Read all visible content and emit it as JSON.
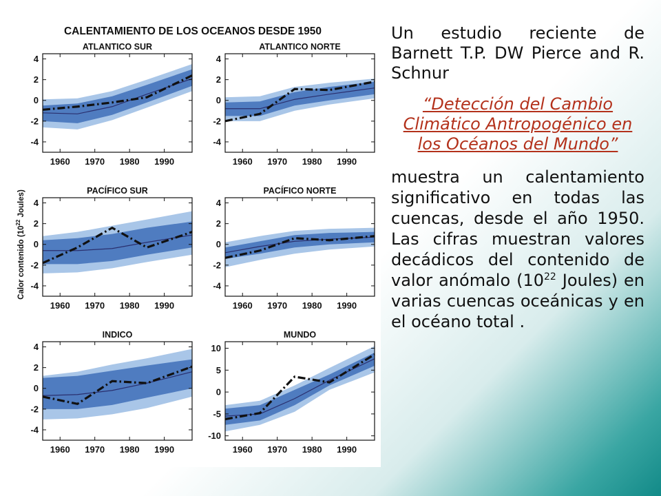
{
  "slide": {
    "intro": "Un estudio reciente de Barnett T.P. DW Pierce and R. Schnur",
    "study_title": "“Detección del Cambio Climático Antropogénico en los Océanos del Mundo”",
    "desc_before": "muestra un calentamiento significativo en todas las cuencas, desde el año 1950. Las cifras muestran valores decádicos del contenido de valor anómalo (10",
    "desc_sup": "22",
    "desc_after": " Joules) en varias cuencas oceánicas y en el océano total ."
  },
  "colors": {
    "outer_band": "#a9c6e8",
    "inner_band": "#4f7cc0",
    "model_line": "#2a2f6e",
    "observed_line": "#111111",
    "axis": "#111111"
  },
  "figure": {
    "title": "CALENTAMIENTO DE LOS OCEANOS DESDE 1950",
    "ylabel_prefix": "Calor contenido (10",
    "ylabel_sup": "22",
    "ylabel_suffix": " Joules)"
  },
  "chart_data": [
    {
      "type": "area",
      "title": "ATLANTICO SUR",
      "xlabel": "",
      "ylabel": "Calor contenido (10^22 Joules)",
      "xlim": [
        1955,
        1998
      ],
      "ylim": [
        -5,
        4.5
      ],
      "xticks": [
        1960,
        1970,
        1980,
        1990
      ],
      "yticks": [
        4,
        2,
        0,
        -2,
        -4
      ],
      "x": [
        1955,
        1965,
        1975,
        1985,
        1998
      ],
      "outer_upper": [
        0.1,
        0.2,
        0.9,
        2.0,
        3.5
      ],
      "outer_lower": [
        -2.6,
        -2.8,
        -1.9,
        -0.7,
        0.9
      ],
      "inner_upper": [
        -0.5,
        -0.3,
        0.4,
        1.5,
        3.0
      ],
      "inner_lower": [
        -2.0,
        -2.2,
        -1.4,
        -0.2,
        1.4
      ],
      "model": [
        -1.2,
        -1.3,
        -0.6,
        0.6,
        2.1
      ],
      "observed": [
        -0.9,
        -0.6,
        -0.2,
        0.3,
        2.4
      ]
    },
    {
      "type": "area",
      "title": "ATLANTICO NORTE",
      "xlabel": "",
      "ylabel": "",
      "xlim": [
        1955,
        1998
      ],
      "ylim": [
        -5,
        4.5
      ],
      "xticks": [
        1960,
        1970,
        1980,
        1990
      ],
      "yticks": [
        4,
        2,
        0,
        -2,
        -4
      ],
      "x": [
        1955,
        1965,
        1975,
        1985,
        1998
      ],
      "outer_upper": [
        0.3,
        0.4,
        1.3,
        1.7,
        2.1
      ],
      "outer_lower": [
        -2.0,
        -2.0,
        -1.0,
        -0.4,
        0.2
      ],
      "inner_upper": [
        -0.2,
        -0.1,
        0.8,
        1.3,
        1.8
      ],
      "inner_lower": [
        -1.5,
        -1.5,
        -0.5,
        0.0,
        0.6
      ],
      "model": [
        -0.8,
        -0.8,
        0.1,
        0.6,
        1.2
      ],
      "observed": [
        -2.0,
        -1.3,
        1.1,
        1.0,
        1.8
      ]
    },
    {
      "type": "area",
      "title": "PACÍFICO SUR",
      "xlabel": "",
      "ylabel": "",
      "xlim": [
        1955,
        1998
      ],
      "ylim": [
        -5,
        4.5
      ],
      "xticks": [
        1960,
        1970,
        1980,
        1990
      ],
      "yticks": [
        4,
        2,
        0,
        -2,
        -4
      ],
      "x": [
        1955,
        1965,
        1975,
        1985,
        1998
      ],
      "outer_upper": [
        0.8,
        1.2,
        1.8,
        2.4,
        3.2
      ],
      "outer_lower": [
        -2.8,
        -2.7,
        -2.3,
        -1.7,
        -1.0
      ],
      "inner_upper": [
        0.4,
        0.6,
        1.0,
        1.6,
        2.2
      ],
      "inner_lower": [
        -1.9,
        -1.9,
        -1.6,
        -1.0,
        -0.3
      ],
      "model": [
        -0.6,
        -0.6,
        -0.4,
        0.2,
        0.9
      ],
      "observed": [
        -1.8,
        -0.3,
        1.6,
        -0.3,
        1.2
      ]
    },
    {
      "type": "area",
      "title": "PACÍFICO NORTE",
      "xlabel": "",
      "ylabel": "",
      "xlim": [
        1955,
        1998
      ],
      "ylim": [
        -5,
        4.5
      ],
      "xticks": [
        1960,
        1970,
        1980,
        1990
      ],
      "yticks": [
        4,
        2,
        0,
        -2,
        -4
      ],
      "x": [
        1955,
        1965,
        1975,
        1985,
        1998
      ],
      "outer_upper": [
        0.2,
        0.8,
        1.3,
        1.5,
        1.6
      ],
      "outer_lower": [
        -2.2,
        -1.5,
        -0.9,
        -0.5,
        -0.2
      ],
      "inner_upper": [
        -0.3,
        0.3,
        0.9,
        1.1,
        1.2
      ],
      "inner_lower": [
        -1.4,
        -0.9,
        -0.3,
        0.0,
        0.2
      ],
      "model": [
        -0.8,
        -0.2,
        0.3,
        0.5,
        0.7
      ],
      "observed": [
        -1.3,
        -0.6,
        0.6,
        0.4,
        0.8
      ]
    },
    {
      "type": "area",
      "title": "INDICO",
      "xlabel": "",
      "ylabel": "",
      "xlim": [
        1955,
        1998
      ],
      "ylim": [
        -5,
        4.5
      ],
      "xticks": [
        1960,
        1970,
        1980,
        1990
      ],
      "yticks": [
        4,
        2,
        0,
        -2,
        -4
      ],
      "x": [
        1955,
        1965,
        1975,
        1985,
        1998
      ],
      "outer_upper": [
        1.2,
        1.6,
        2.3,
        2.9,
        3.8
      ],
      "outer_lower": [
        -3.0,
        -2.9,
        -2.5,
        -1.9,
        -0.8
      ],
      "inner_upper": [
        1.0,
        1.2,
        1.7,
        2.2,
        2.8
      ],
      "inner_lower": [
        -2.0,
        -2.0,
        -1.6,
        -0.9,
        0.0
      ],
      "model": [
        -0.7,
        -0.6,
        -0.2,
        0.5,
        1.6
      ],
      "observed": [
        -0.8,
        -1.5,
        0.7,
        0.5,
        2.1
      ]
    },
    {
      "type": "area",
      "title": "MUNDO",
      "xlabel": "",
      "ylabel": "",
      "xlim": [
        1955,
        1998
      ],
      "ylim": [
        -11,
        11.5
      ],
      "xticks": [
        1960,
        1970,
        1980,
        1990
      ],
      "yticks": [
        10,
        5,
        0,
        -5,
        -10
      ],
      "x": [
        1955,
        1965,
        1975,
        1985,
        1998
      ],
      "outer_upper": [
        -3.0,
        -2.0,
        1.5,
        5.5,
        10.5
      ],
      "outer_lower": [
        -9.0,
        -7.5,
        -4.5,
        0.5,
        4.5
      ],
      "inner_upper": [
        -3.8,
        -3.0,
        0.5,
        4.0,
        9.0
      ],
      "inner_lower": [
        -7.5,
        -6.5,
        -3.0,
        1.5,
        6.0
      ],
      "model": [
        -5.5,
        -5.0,
        -1.5,
        2.7,
        7.6
      ],
      "observed": [
        -6.2,
        -4.8,
        3.5,
        2.2,
        8.6
      ]
    }
  ]
}
